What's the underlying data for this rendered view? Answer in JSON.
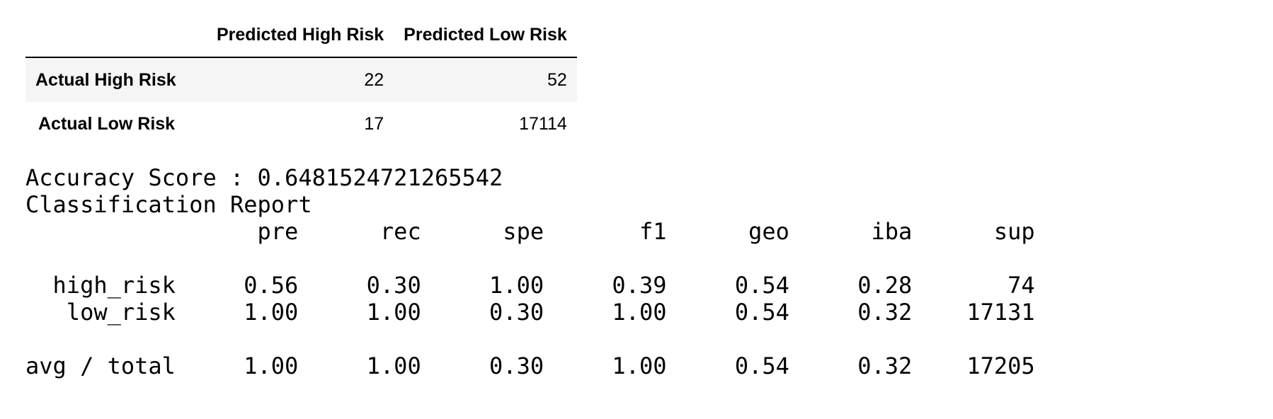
{
  "confusion_matrix": {
    "columns": [
      "Predicted High Risk",
      "Predicted Low Risk"
    ],
    "rows": [
      {
        "label": "Actual High Risk",
        "values": [
          "22",
          "52"
        ]
      },
      {
        "label": "Actual Low Risk",
        "values": [
          "17",
          "17114"
        ]
      }
    ]
  },
  "accuracy_line": "Accuracy Score : 0.6481524721265542",
  "report_title": "Classification Report",
  "report": {
    "headers": [
      "pre",
      "rec",
      "spe",
      "f1",
      "geo",
      "iba",
      "sup"
    ],
    "rows": [
      {
        "label": "high_risk",
        "values": [
          "0.56",
          "0.30",
          "1.00",
          "0.39",
          "0.54",
          "0.28",
          "74"
        ]
      },
      {
        "label": "low_risk",
        "values": [
          "1.00",
          "1.00",
          "0.30",
          "1.00",
          "0.54",
          "0.32",
          "17131"
        ]
      }
    ],
    "total": {
      "label": "avg / total",
      "values": [
        "1.00",
        "1.00",
        "0.30",
        "1.00",
        "0.54",
        "0.32",
        "17205"
      ]
    }
  }
}
